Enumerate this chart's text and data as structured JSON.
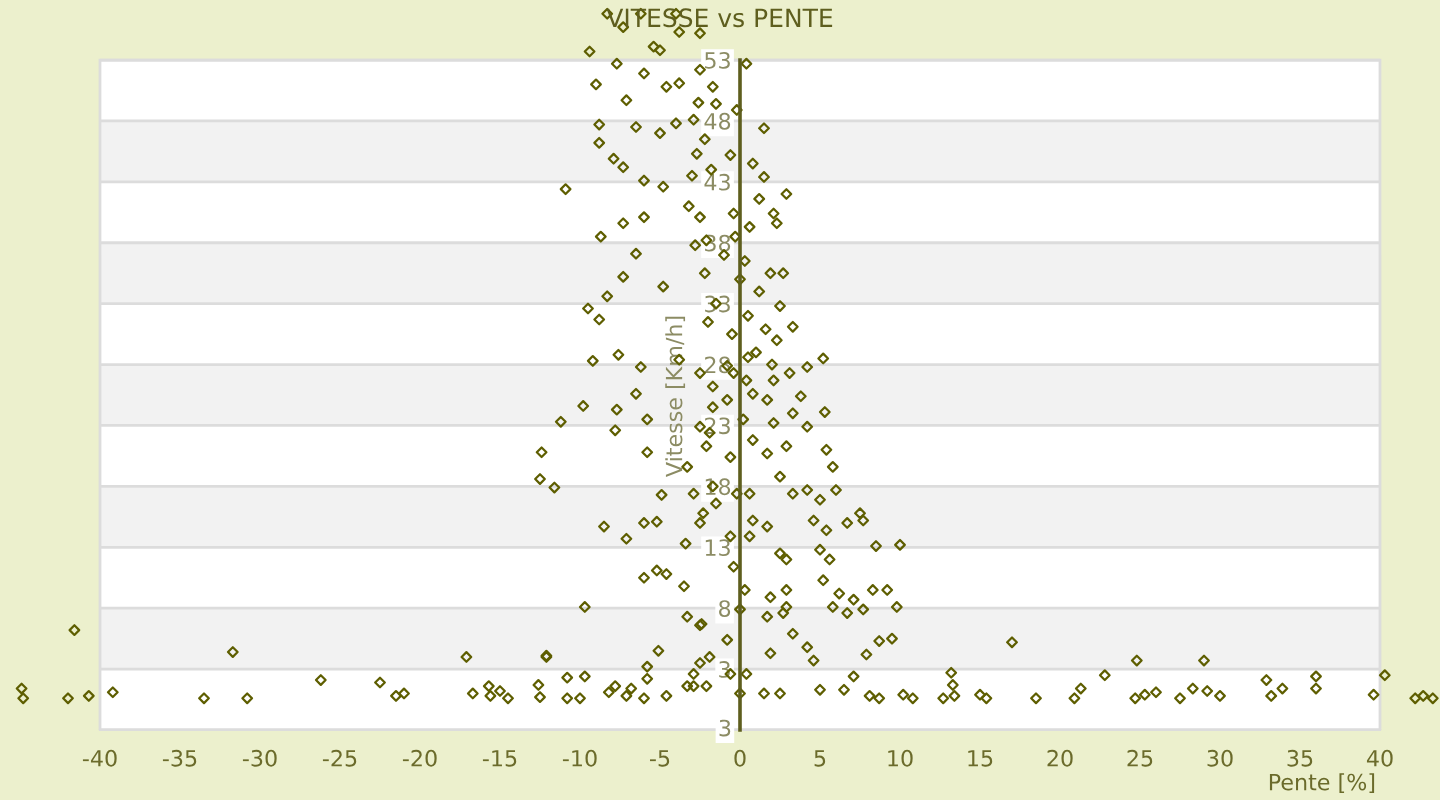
{
  "chart_data": {
    "type": "scatter",
    "title": "VITESSE vs PENTE",
    "xlabel": "Pente [%]",
    "ylabel": "Vitesse [Km/h]",
    "annotations": [
      "3"
    ],
    "xlim": [
      -46,
      43.75
    ],
    "xticks": [
      -40,
      -35,
      -30,
      -25,
      -20,
      -15,
      -10,
      -5,
      0,
      5,
      10,
      15,
      20,
      25,
      30,
      35,
      40
    ],
    "ylim": [
      -2,
      57.5
    ],
    "yticks": [
      {
        "value": -2,
        "label": null
      },
      3,
      8,
      13,
      18,
      23,
      28,
      33,
      38,
      43,
      48,
      53
    ],
    "grid": "y",
    "marker": "diamond",
    "series": [
      {
        "color": "#5e5e00",
        "x": [
          -44.9,
          -44.8,
          -42.0,
          -40.7,
          -41.6,
          -39.2,
          -33.5,
          -31.7,
          -30.8,
          -26.2,
          -22.5,
          -21.5,
          -21.0,
          -17.1,
          -16.7,
          -15.7,
          -15.6,
          -15.0,
          -14.5,
          -12.6,
          -12.5,
          -12.1,
          -10.8,
          -10.8,
          -10.0,
          -9.7,
          -9.7,
          -8.2,
          -7.8,
          -7.1,
          -6.8,
          -6.0,
          -5.8,
          -5.8,
          -5.1,
          -3.3,
          -3.5,
          -2.4,
          -4.6,
          -2.9,
          17.0,
          24.8,
          29.0,
          22.8,
          21.3,
          20.9,
          18.5,
          15.4,
          15.0,
          13.4,
          13.2,
          13.3,
          12.7,
          10.8,
          10.2,
          9.5,
          8.7,
          8.7,
          25.3,
          26.0,
          24.7,
          27.5,
          28.3,
          29.2,
          30.0,
          32.9,
          33.2,
          33.9,
          36.0,
          36.0,
          39.6,
          40.3,
          42.2,
          42.7,
          43.3,
          7.9,
          7.1,
          6.5,
          -9.4,
          -8.3,
          -7.3,
          -6.2,
          -5.4,
          -5.0,
          -3.8,
          -2.5,
          -4.0,
          -7.7,
          -6.0,
          -9.0,
          -7.1,
          -4.6,
          -3.8,
          -2.5,
          -1.7,
          0.4,
          -8.8,
          -6.5,
          -5.0,
          -2.9,
          -1.5,
          -0.2,
          1.5,
          -8.8,
          -7.9,
          -10.9,
          -7.3,
          -6.0,
          -4.8,
          -2.7,
          -0.6,
          0.8,
          1.5,
          2.9,
          1.2,
          -8.7,
          -6.0,
          -7.3,
          2.1,
          2.3,
          -2.5,
          -2.1,
          -0.4,
          0.6,
          -7.3,
          -6.5,
          2.7,
          1.9,
          -9.5,
          -8.8,
          -8.3,
          -4.8,
          2.5,
          3.3,
          2.3,
          5.2,
          4.2,
          -9.2,
          -7.6,
          -6.2,
          -3.8,
          -11.2,
          -9.8,
          -12.4,
          -12.5,
          -11.6,
          -7.7,
          -7.8,
          -6.5,
          -5.8,
          -5.8,
          -4.9,
          -8.5,
          -7.1,
          -6.0,
          -5.2,
          -3.4,
          -6.0,
          -5.2,
          -4.6,
          -12.1,
          -2.5,
          -2.5,
          -2.9,
          -1.9,
          -0.8,
          -0.6,
          -2.1,
          -3.3,
          0.0,
          0.4,
          1.5,
          1.9,
          2.5,
          3.3,
          4.2,
          4.6,
          5.0,
          8.1,
          1.7,
          2.7,
          0.0,
          -0.4,
          0.3,
          -0.6,
          -0.2,
          -0.6,
          0.6,
          0.8,
          0.6,
          1.7,
          2.9,
          2.5,
          1.9,
          2.9,
          2.9,
          -2.3,
          -2.5,
          -1.5,
          -1.7,
          -2.9,
          -3.3,
          -2.1,
          -2.5,
          0.8,
          1.7,
          2.5,
          3.3,
          4.2,
          5.0,
          6.0,
          4.6,
          5.4,
          5.0,
          5.6,
          5.2,
          6.2,
          7.1,
          7.7,
          5.8,
          6.7,
          8.3,
          9.2,
          9.8,
          10.0,
          8.5,
          7.5,
          6.7,
          7.7,
          5.3,
          4.2,
          3.3,
          1.7,
          2.1,
          3.1,
          3.8,
          5.4,
          5.8,
          2.9,
          2.1,
          0.2,
          -0.8,
          0.8,
          -0.4,
          0.4,
          -1.7,
          -2.5,
          -1.7,
          -1.9,
          -1.0,
          0.0,
          -1.5,
          0.5,
          -0.5,
          1.0,
          -2.0,
          0.3,
          -0.3,
          1.2,
          -2.2,
          -2.8,
          -3.0,
          -2.2,
          -3.2,
          -1.8,
          -2.6,
          -4.0,
          1.6,
          2.0,
          -0.8,
          0.5
        ],
        "values": [
          1.4,
          0.6,
          0.6,
          0.8,
          6.2,
          1.1,
          0.6,
          4.4,
          0.6,
          2.1,
          1.9,
          0.8,
          1.0,
          4.0,
          1.0,
          1.6,
          0.8,
          1.2,
          0.6,
          1.7,
          0.7,
          4.0,
          2.3,
          0.6,
          0.6,
          2.4,
          8.1,
          1.1,
          1.6,
          0.8,
          1.4,
          0.6,
          3.2,
          2.2,
          4.5,
          7.3,
          9.8,
          6.7,
          0.8,
          1.6,
          5.2,
          3.7,
          3.7,
          2.5,
          1.4,
          0.6,
          0.6,
          0.6,
          0.9,
          0.8,
          2.7,
          1.7,
          0.6,
          0.6,
          0.9,
          5.5,
          5.3,
          0.6,
          0.9,
          1.1,
          0.6,
          0.6,
          1.4,
          1.2,
          0.8,
          2.1,
          0.8,
          1.4,
          2.4,
          1.4,
          0.9,
          2.5,
          0.6,
          0.8,
          0.6,
          4.2,
          2.4,
          1.3,
          53.7,
          56.8,
          55.7,
          56.8,
          54.1,
          53.8,
          55.3,
          55.2,
          56.8,
          52.7,
          51.9,
          51.0,
          49.7,
          50.8,
          51.1,
          52.2,
          50.8,
          52.7,
          47.7,
          47.5,
          47.0,
          48.1,
          49.4,
          48.9,
          47.4,
          46.2,
          44.9,
          42.4,
          44.2,
          43.1,
          42.6,
          45.3,
          45.2,
          44.5,
          43.4,
          42.0,
          41.6,
          38.5,
          40.1,
          39.6,
          40.4,
          39.6,
          40.1,
          38.2,
          40.4,
          39.3,
          35.2,
          37.1,
          35.5,
          35.5,
          32.6,
          31.7,
          33.6,
          34.4,
          32.8,
          31.1,
          30.0,
          28.5,
          27.8,
          28.3,
          28.8,
          27.8,
          28.4,
          23.3,
          24.6,
          20.8,
          18.6,
          17.9,
          24.3,
          22.6,
          25.6,
          23.5,
          20.8,
          17.3,
          14.7,
          13.7,
          15.0,
          15.1,
          13.3,
          10.5,
          11.1,
          10.8,
          4.1,
          6.6,
          3.5,
          2.6,
          4.0,
          5.4,
          2.6,
          1.6,
          1.6,
          1.0,
          2.6,
          1.0,
          4.3,
          1.0,
          5.9,
          4.8,
          3.7,
          1.3,
          0.8,
          7.3,
          7.6,
          7.9,
          11.4,
          9.5,
          13.9,
          17.4,
          20.4,
          17.4,
          15.2,
          13.9,
          14.7,
          12.0,
          12.5,
          8.9,
          9.5,
          8.1,
          15.8,
          15.0,
          16.6,
          18.0,
          17.4,
          19.6,
          21.3,
          22.9,
          21.8,
          20.7,
          18.8,
          17.4,
          17.7,
          16.9,
          17.7,
          15.2,
          14.4,
          12.8,
          12.0,
          10.3,
          9.2,
          8.7,
          7.9,
          8.1,
          7.6,
          9.5,
          9.5,
          8.1,
          13.2,
          13.1,
          15.8,
          15.0,
          15.2,
          24.1,
          22.9,
          24.0,
          25.1,
          26.7,
          27.3,
          25.4,
          21.0,
          19.6,
          21.3,
          23.2,
          23.5,
          25.1,
          25.6,
          27.3,
          26.7,
          26.2,
          27.3,
          24.5,
          22.4,
          37.0,
          35.0,
          33.0,
          32.0,
          30.5,
          29.0,
          31.5,
          36.5,
          38.5,
          34.0,
          35.5,
          37.8,
          43.5,
          46.5,
          41.0,
          44.0,
          49.5,
          47.8,
          30.9,
          28.0,
          27.9,
          28.6
        ]
      }
    ]
  }
}
